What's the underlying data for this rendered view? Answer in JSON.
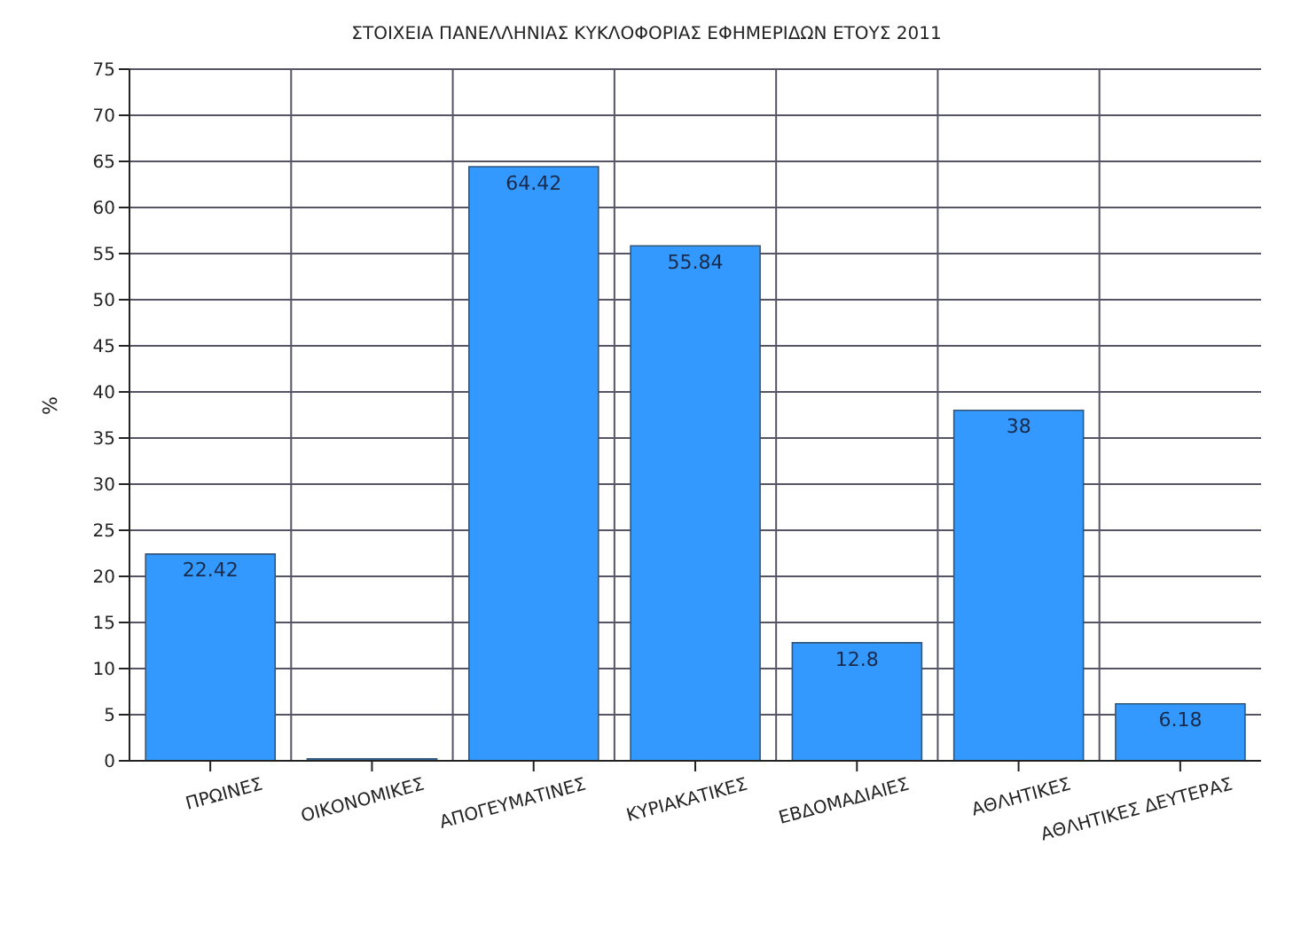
{
  "chart_data": {
    "type": "bar",
    "title": "ΣΤΟΙΧΕΙΑ ΠΑΝΕΛΛΗΝΙΑΣ ΚΥΚΛΟΦΟΡΙΑΣ ΕΦΗΜΕΡΙΔΩΝ ΕΤΟΥΣ 2011",
    "ylabel": "%",
    "categories": [
      "ΠΡΩΙΝΕΣ",
      "ΟΙΚΟΝΟΜΙΚΕΣ",
      "ΑΠΟΓΕΥΜΑΤΙΝΕΣ",
      "ΚΥΡΙΑΚΑΤΙΚΕΣ",
      "ΕΒΔΟΜΑΔΙΑΙΕΣ",
      "ΑΘΛΗΤΙΚΕΣ",
      "ΑΘΛΗΤΙΚΕΣ ΔΕΥΤΕΡΑΣ"
    ],
    "values": [
      22.42,
      0.2,
      64.42,
      55.84,
      12.8,
      38,
      6.18
    ],
    "value_labels": [
      "22.42",
      null,
      "64.42",
      "55.84",
      "12.8",
      "38",
      "6.18"
    ],
    "color": "#3399ff",
    "ylim": [
      0,
      75
    ],
    "yticks": [
      0,
      5,
      10,
      15,
      20,
      25,
      30,
      35,
      40,
      45,
      50,
      55,
      60,
      65,
      70,
      75
    ],
    "grid": true,
    "legend": false
  }
}
